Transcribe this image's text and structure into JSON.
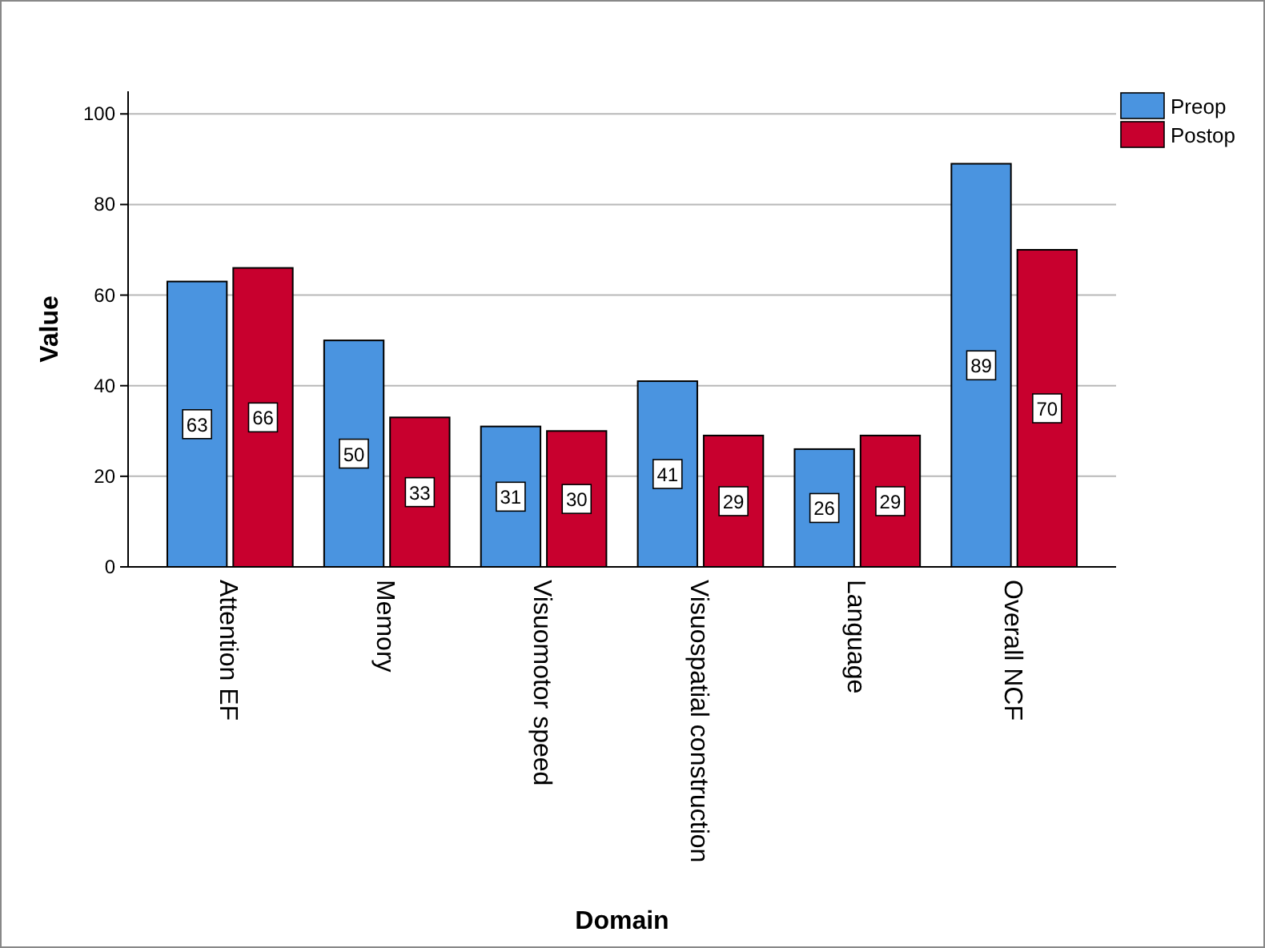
{
  "chart_data": {
    "type": "bar",
    "xlabel": "Domain",
    "ylabel": "Value",
    "categories": [
      "Attention EF",
      "Memory",
      "Visuomotor speed",
      "Visuospatial construction",
      "Language",
      "Overall NCF"
    ],
    "series": [
      {
        "name": "Preop",
        "color": "#4a94e0",
        "values": [
          63,
          50,
          31,
          41,
          26,
          89
        ]
      },
      {
        "name": "Postop",
        "color": "#c8002e",
        "values": [
          66,
          33,
          30,
          29,
          29,
          70
        ]
      }
    ],
    "ylim": [
      0,
      105
    ],
    "yticks": [
      0,
      20,
      40,
      60,
      80,
      100
    ],
    "grid": "y",
    "legend": "top right",
    "data_labels": true
  }
}
